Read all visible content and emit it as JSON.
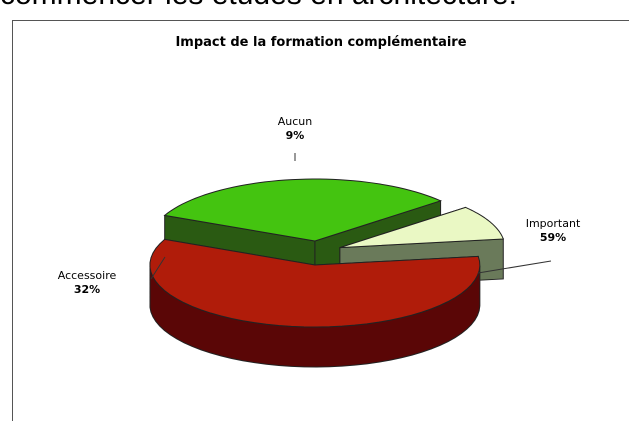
{
  "header_text": "commencer les études en architecture.",
  "chart_data": {
    "type": "pie",
    "title": "Impact de la formation complémentaire",
    "slices": [
      {
        "label": "Important",
        "value": 59,
        "value_label": "59%",
        "color": "#b01c0a",
        "side_color": "#5a0606"
      },
      {
        "label": "Accessoire",
        "value": 32,
        "value_label": "32%",
        "color": "#44c410",
        "side_color": "#2a5a12"
      },
      {
        "label": "Aucun",
        "value": 9,
        "value_label": "9%",
        "color": "#eaf8c4",
        "side_color": "#6a7a5a"
      }
    ],
    "exploded": true,
    "three_d": true
  }
}
